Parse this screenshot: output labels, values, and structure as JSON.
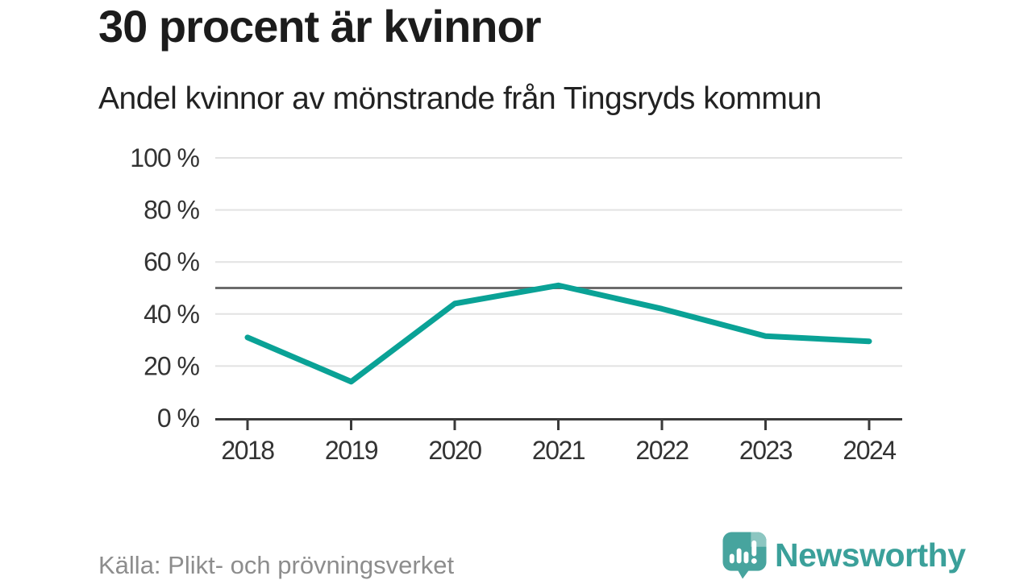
{
  "header": {
    "title": "30 procent är kvinnor",
    "subtitle": "Andel kvinnor av mönstrande från Tingsryds kommun"
  },
  "chart_data": {
    "type": "line",
    "title": "30 procent är kvinnor",
    "subtitle": "Andel kvinnor av mönstrande från Tingsryds kommun",
    "categories": [
      "2018",
      "2019",
      "2020",
      "2021",
      "2022",
      "2023",
      "2024"
    ],
    "series": [
      {
        "name": "Andel kvinnor av mönstrande",
        "values": [
          31,
          14,
          44,
          51,
          42,
          31.5,
          29.5
        ]
      }
    ],
    "unit": "%",
    "xlabel": "",
    "ylabel": "",
    "ylim": [
      0,
      100
    ],
    "yticks": [
      0,
      20,
      40,
      60,
      80,
      100
    ],
    "ytick_labels": [
      "0 %",
      "20 %",
      "40 %",
      "60 %",
      "80 %",
      "100 %"
    ],
    "reference_line": 50,
    "grid": true,
    "legend": "none"
  },
  "footer": {
    "source": "Källa: Plikt- och prövningsverket",
    "brand": "Newsworthy"
  },
  "colors": {
    "line": "#0aa296",
    "grid": "#e2e2e2",
    "reference": "#6b6b6b",
    "axis": "#3a3a3a",
    "tick_label": "#333333",
    "title": "#1c1c1c",
    "subtitle": "#222222",
    "source": "#8d8d8d",
    "brand_teal": "#3ba09a",
    "brand_icon": "#47a49e",
    "brand_icon_light": "#8cc6c1"
  }
}
